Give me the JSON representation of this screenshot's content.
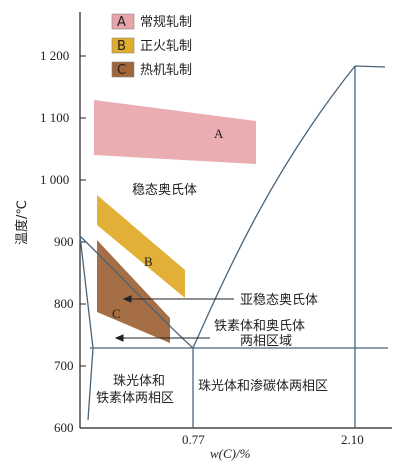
{
  "colors": {
    "conventional": "#e8a4a8",
    "normalizing": "#e0ac2c",
    "thermo": "#a0663a",
    "line": "#4a6378",
    "axis": "#222222"
  },
  "axes": {
    "ylabel": "温度/℃",
    "xlabel": "w(C)/%",
    "yticks": [
      {
        "label": "1 200",
        "value": 1200
      },
      {
        "label": "1 100",
        "value": 1100
      },
      {
        "label": "1 000",
        "value": 1000
      },
      {
        "label": "900",
        "value": 900
      },
      {
        "label": "800",
        "value": 800
      },
      {
        "label": "700",
        "value": 700
      },
      {
        "label": "600",
        "value": 600
      }
    ],
    "xticks": [
      {
        "label": "0.77",
        "value": 0.77
      },
      {
        "label": "2.10",
        "value": 2.1
      }
    ]
  },
  "legend": [
    {
      "letter": "A",
      "label": "常规轧制",
      "color": "#e8a4a8"
    },
    {
      "letter": "B",
      "label": "正火轧制",
      "color": "#e0ac2c"
    },
    {
      "letter": "C",
      "label": "热机轧制",
      "color": "#a0663a"
    }
  ],
  "regions": {
    "A": "A",
    "B": "B",
    "C": "C"
  },
  "labels": {
    "stable_austenite": "稳态奥氏体",
    "metastable_austenite": "亚稳态奥氏体",
    "ferrite_austenite_1": "铁素体和奥氏体",
    "ferrite_austenite_2": "两相区域",
    "pearlite_ferrite_1": "珠光体和",
    "pearlite_ferrite_2": "铁素体两相区",
    "pearlite_cementite": "珠光体和渗碳体两相区"
  }
}
